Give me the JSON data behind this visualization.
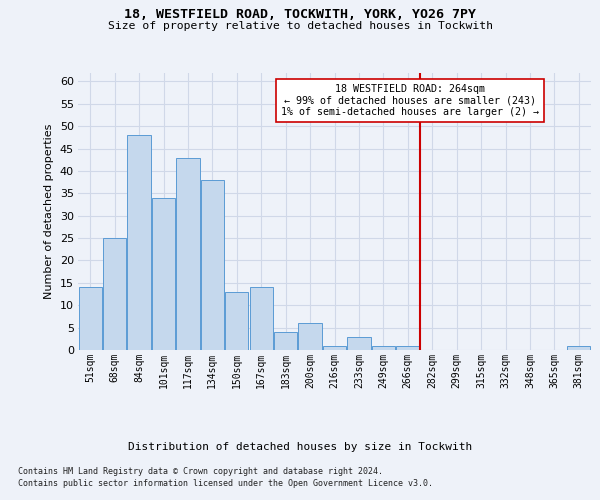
{
  "title1": "18, WESTFIELD ROAD, TOCKWITH, YORK, YO26 7PY",
  "title2": "Size of property relative to detached houses in Tockwith",
  "xlabel": "Distribution of detached houses by size in Tockwith",
  "ylabel": "Number of detached properties",
  "bar_labels": [
    "51sqm",
    "68sqm",
    "84sqm",
    "101sqm",
    "117sqm",
    "134sqm",
    "150sqm",
    "167sqm",
    "183sqm",
    "200sqm",
    "216sqm",
    "233sqm",
    "249sqm",
    "266sqm",
    "282sqm",
    "299sqm",
    "315sqm",
    "332sqm",
    "348sqm",
    "365sqm",
    "381sqm"
  ],
  "bar_values": [
    14,
    25,
    48,
    34,
    43,
    38,
    13,
    14,
    4,
    6,
    1,
    3,
    1,
    1,
    0,
    0,
    0,
    0,
    0,
    0,
    1
  ],
  "bar_color": "#c5d8ed",
  "bar_edge_color": "#5b9bd5",
  "vline_x_idx": 13.5,
  "vline_color": "#cc0000",
  "annotation_text": "18 WESTFIELD ROAD: 264sqm\n← 99% of detached houses are smaller (243)\n1% of semi-detached houses are larger (2) →",
  "annotation_box_color": "#ffffff",
  "annotation_box_edge": "#cc0000",
  "ylim": [
    0,
    62
  ],
  "yticks": [
    0,
    5,
    10,
    15,
    20,
    25,
    30,
    35,
    40,
    45,
    50,
    55,
    60
  ],
  "grid_color": "#d0d8e8",
  "footer1": "Contains HM Land Registry data © Crown copyright and database right 2024.",
  "footer2": "Contains public sector information licensed under the Open Government Licence v3.0.",
  "bg_color": "#eef2f9"
}
